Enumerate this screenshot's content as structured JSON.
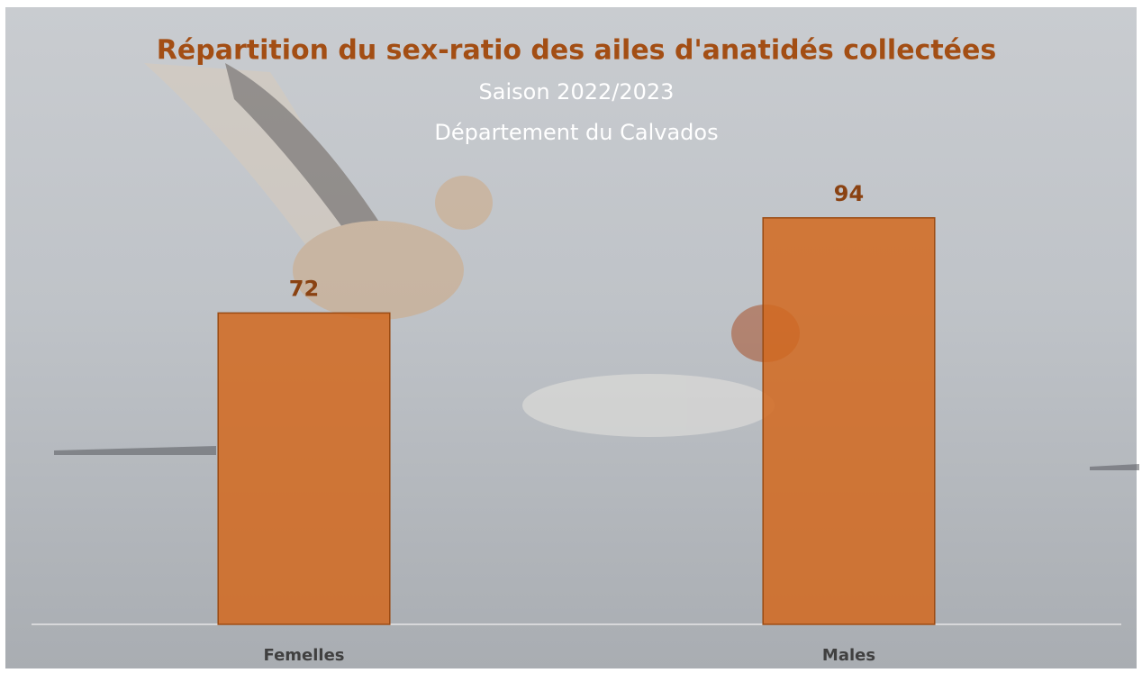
{
  "chart_data": {
    "type": "bar",
    "title": "Répartition du sex-ratio des ailes d'anatidés collectées",
    "subtitle": [
      "Saison 2022/2023",
      "Département du Calvados"
    ],
    "categories": [
      "Femelles",
      "Males"
    ],
    "values": [
      72,
      94
    ],
    "color": "#d2691e",
    "ylim": [
      0,
      100
    ],
    "grid": false
  }
}
